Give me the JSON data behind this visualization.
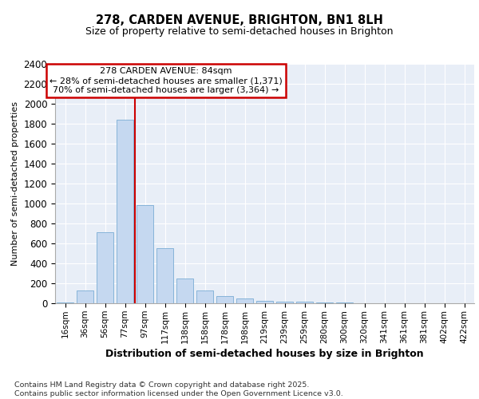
{
  "title1": "278, CARDEN AVENUE, BRIGHTON, BN1 8LH",
  "title2": "Size of property relative to semi-detached houses in Brighton",
  "xlabel": "Distribution of semi-detached houses by size in Brighton",
  "ylabel": "Number of semi-detached properties",
  "categories": [
    "16sqm",
    "36sqm",
    "56sqm",
    "77sqm",
    "97sqm",
    "117sqm",
    "138sqm",
    "158sqm",
    "178sqm",
    "198sqm",
    "219sqm",
    "239sqm",
    "259sqm",
    "280sqm",
    "300sqm",
    "320sqm",
    "341sqm",
    "361sqm",
    "381sqm",
    "402sqm",
    "422sqm"
  ],
  "values": [
    10,
    130,
    710,
    1840,
    985,
    555,
    245,
    130,
    70,
    50,
    25,
    15,
    15,
    10,
    5,
    3,
    1,
    0,
    0,
    0,
    0
  ],
  "bar_color": "#c5d8f0",
  "bar_edge_color": "#7aadd4",
  "property_line_x": 86,
  "property_line_label": "278 CARDEN AVENUE: 84sqm",
  "annotation_line1": "← 28% of semi-detached houses are smaller (1,371)",
  "annotation_line2": "70% of semi-detached houses are larger (3,364) →",
  "vline_color": "#cc0000",
  "annotation_box_edge": "#cc0000",
  "ylim": [
    0,
    2400
  ],
  "yticks": [
    0,
    200,
    400,
    600,
    800,
    1000,
    1200,
    1400,
    1600,
    1800,
    2000,
    2200,
    2400
  ],
  "footer": "Contains HM Land Registry data © Crown copyright and database right 2025.\nContains public sector information licensed under the Open Government Licence v3.0.",
  "fig_bg_color": "#ffffff",
  "plot_bg_color": "#e8eef7",
  "grid_color": "#ffffff"
}
